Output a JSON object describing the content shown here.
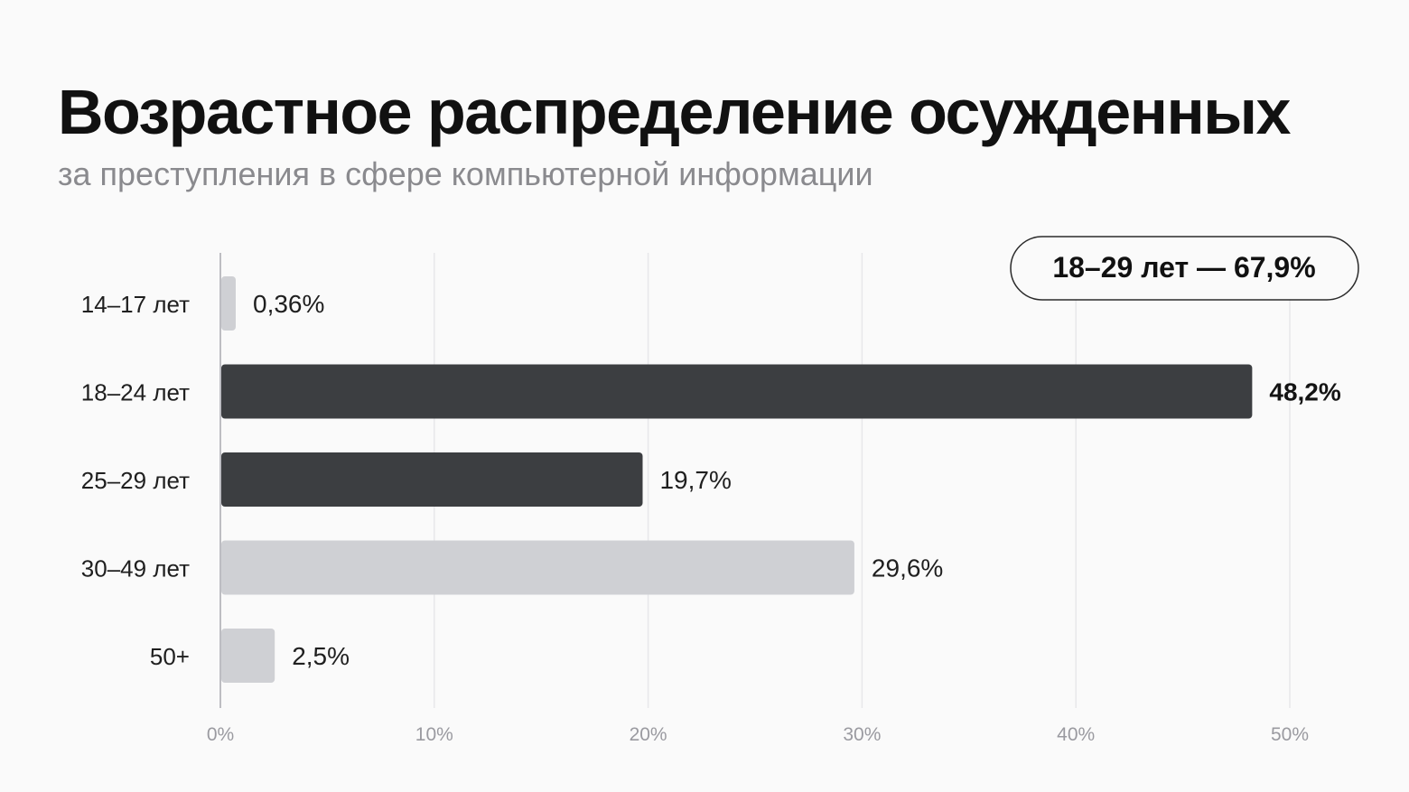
{
  "header": {
    "title": "Возрастное распределение осужденных",
    "subtitle": "за преступления в сфере компьютерной информации"
  },
  "badge": {
    "text": "18–29 лет — 67,9%"
  },
  "colors": {
    "dark_bar": "#3c3e41",
    "light_bar": "#cfd0d4",
    "grid": "#e7e7ea",
    "axis": "#bdbdc2"
  },
  "chart_data": {
    "type": "bar",
    "orientation": "horizontal",
    "title": "Возрастное распределение осужденных",
    "subtitle": "за преступления в сфере компьютерной информации",
    "xlabel": "",
    "ylabel": "",
    "xlim": [
      0,
      50
    ],
    "ticks": [
      0,
      10,
      20,
      30,
      40,
      50
    ],
    "tick_labels": [
      "0%",
      "10%",
      "20%",
      "30%",
      "40%",
      "50%"
    ],
    "grid": true,
    "legend": "none",
    "categories": [
      "14–17 лет",
      "18–24 лет",
      "25–29 лет",
      "30–49 лет",
      "50+"
    ],
    "values": [
      0.36,
      48.2,
      19.7,
      29.6,
      2.5
    ],
    "value_labels": [
      "0,36%",
      "48,2%",
      "19,7%",
      "29,6%",
      "2,5%"
    ],
    "highlight": [
      false,
      true,
      true,
      false,
      false
    ],
    "annotation": "18–29 лет — 67,9%"
  }
}
